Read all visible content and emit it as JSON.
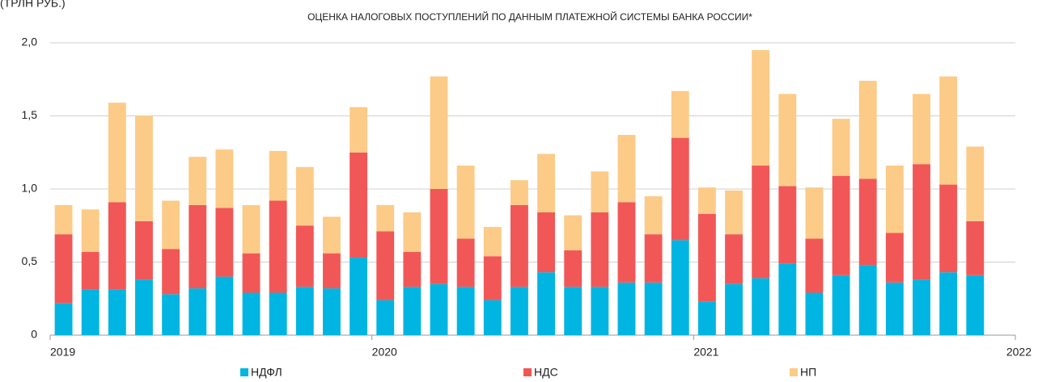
{
  "chart_data": {
    "type": "stacked-bar",
    "unit_label": "(ТРЛН РУБ.)",
    "title": "ОЦЕНКА НАЛОГОВЫХ ПОСТУПЛЕНИЙ ПО ДАННЫМ ПЛАТЕЖНОЙ СИСТЕМЫ БАНКА РОССИИ*",
    "categories": [
      null,
      null,
      null,
      null,
      null,
      null,
      null,
      null,
      null,
      null,
      null,
      null,
      null,
      null,
      null,
      null,
      null,
      null,
      null,
      null,
      null,
      null,
      null,
      null,
      null,
      null,
      null,
      null,
      null,
      null,
      null,
      null,
      null,
      null,
      null
    ],
    "xlim": [
      2019,
      2022
    ],
    "xticks": [
      2019,
      2020,
      2021,
      2022
    ],
    "ylim": [
      0,
      2
    ],
    "yticks": [
      0,
      {
        "value": 0.5,
        "label": "0,5"
      },
      {
        "value": 1,
        "label": "1,0"
      },
      {
        "value": 1.5,
        "label": "1,5"
      },
      {
        "value": 2,
        "label": "2,0"
      }
    ],
    "grid": true,
    "legend": "bottom",
    "series": [
      {
        "name": "НДФЛ",
        "color": "#00b5e2",
        "values": [
          0.22,
          0.31,
          0.31,
          0.38,
          0.28,
          0.32,
          0.4,
          0.29,
          0.29,
          0.33,
          0.32,
          0.53,
          0.24,
          0.33,
          0.35,
          0.33,
          0.24,
          0.33,
          0.43,
          0.33,
          0.33,
          0.36,
          0.36,
          0.65,
          0.23,
          0.35,
          0.39,
          0.49,
          0.29,
          0.41,
          0.48,
          0.36,
          0.38,
          0.43,
          0.41
        ]
      },
      {
        "name": "НДС",
        "color": "#f25757",
        "values": [
          0.47,
          0.26,
          0.6,
          0.4,
          0.31,
          0.57,
          0.47,
          0.27,
          0.63,
          0.42,
          0.24,
          0.72,
          0.47,
          0.24,
          0.65,
          0.33,
          0.3,
          0.56,
          0.41,
          0.25,
          0.51,
          0.55,
          0.33,
          0.7,
          0.6,
          0.34,
          0.77,
          0.53,
          0.37,
          0.68,
          0.59,
          0.34,
          0.79,
          0.6,
          0.37
        ]
      },
      {
        "name": "НП",
        "color": "#fccb87",
        "values": [
          0.2,
          0.29,
          0.68,
          0.72,
          0.33,
          0.33,
          0.4,
          0.33,
          0.34,
          0.4,
          0.25,
          0.31,
          0.18,
          0.27,
          0.77,
          0.5,
          0.2,
          0.17,
          0.4,
          0.24,
          0.28,
          0.46,
          0.26,
          0.32,
          0.18,
          0.3,
          0.79,
          0.63,
          0.35,
          0.39,
          0.67,
          0.46,
          0.48,
          0.74,
          0.51
        ]
      }
    ]
  }
}
